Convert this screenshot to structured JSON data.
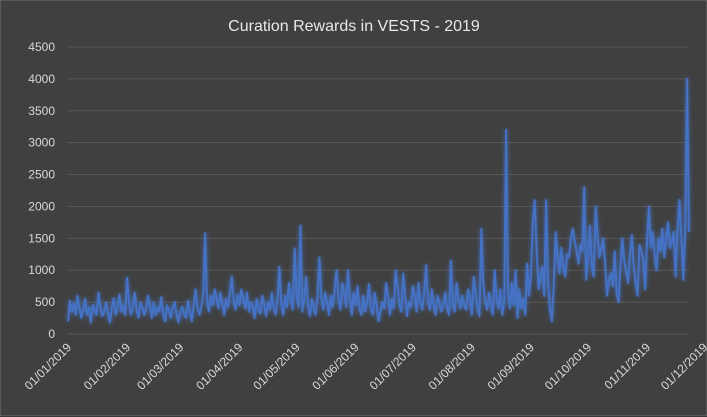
{
  "chart_data": {
    "type": "line",
    "title": "Curation Rewards in VESTS - 2019",
    "xlabel": "",
    "ylabel": "",
    "ylim": [
      0,
      4500
    ],
    "yticks": [
      0,
      500,
      1000,
      1500,
      2000,
      2500,
      3000,
      3500,
      4000,
      4500
    ],
    "xticks": [
      "01/01/2019",
      "01/02/2019",
      "01/03/2019",
      "01/04/2019",
      "01/05/2019",
      "01/06/2019",
      "01/07/2019",
      "01/08/2019",
      "01/09/2019",
      "01/10/2019",
      "01/11/2019",
      "01/12/2019"
    ],
    "grid": true,
    "legend": "none",
    "line_color": "#4472C4",
    "series": [
      {
        "x_start": "2019-01-01",
        "x_step_days": 1,
        "values": [
          200,
          520,
          350,
          480,
          300,
          600,
          420,
          250,
          380,
          550,
          300,
          420,
          180,
          460,
          380,
          300,
          650,
          420,
          280,
          350,
          500,
          320,
          180,
          420,
          560,
          300,
          400,
          620,
          350,
          450,
          300,
          880,
          520,
          300,
          420,
          650,
          380,
          250,
          500,
          420,
          300,
          380,
          600,
          450,
          250,
          500,
          300,
          420,
          350,
          580,
          300,
          200,
          450,
          380,
          250,
          420,
          500,
          300,
          180,
          350,
          430,
          300,
          250,
          520,
          350,
          200,
          450,
          700,
          400,
          300,
          420,
          650,
          1580,
          500,
          350,
          600,
          450,
          700,
          550,
          400,
          650,
          480,
          300,
          550,
          420,
          650,
          900,
          500,
          380,
          620,
          450,
          700,
          550,
          400,
          650,
          350,
          500,
          420,
          250,
          550,
          400,
          320,
          600,
          450,
          280,
          500,
          380,
          650,
          420,
          300,
          550,
          1050,
          450,
          300,
          600,
          420,
          800,
          550,
          380,
          1340,
          600,
          420,
          1700,
          350,
          550,
          900,
          450,
          280,
          550,
          420,
          300,
          600,
          1200,
          550,
          380,
          650,
          500,
          300,
          600,
          420,
          700,
          1000,
          550,
          380,
          800,
          650,
          420,
          1000,
          550,
          300,
          650,
          450,
          750,
          400,
          300,
          600,
          350,
          500,
          780,
          400,
          300,
          650,
          450,
          200,
          350,
          500,
          400,
          800,
          600,
          300,
          550,
          400,
          1000,
          750,
          450,
          350,
          950,
          600,
          280,
          500,
          420,
          750,
          600,
          350,
          800,
          500,
          380,
          650,
          1080,
          500,
          380,
          700,
          450,
          300,
          600,
          500,
          350,
          450,
          650,
          400,
          300,
          1150,
          450,
          350,
          800,
          550,
          400,
          600,
          450,
          380,
          700,
          550,
          300,
          900,
          650,
          400,
          280,
          1650,
          800,
          500,
          380,
          650,
          450,
          300,
          1000,
          550,
          400,
          700,
          300,
          500,
          3200,
          650,
          400,
          800,
          450,
          1000,
          250,
          700,
          400,
          550,
          300,
          1100,
          600,
          900,
          1750,
          2100,
          1350,
          700,
          900,
          1050,
          600,
          2100,
          850,
          400,
          200,
          750,
          1600,
          1200,
          950,
          1350,
          1050,
          900,
          1250,
          1200,
          1500,
          1650,
          1450,
          1300,
          1100,
          1400,
          1300,
          2300,
          850,
          1200,
          1700,
          1050,
          900,
          2000,
          1550,
          1200,
          1350,
          1500,
          1100,
          600,
          850,
          950,
          750,
          1300,
          650,
          500,
          1050,
          1500,
          1150,
          980,
          800,
          1250,
          1550,
          1050,
          800,
          600,
          1400,
          1300,
          1150,
          700,
          1500,
          2000,
          1350,
          1600,
          1200,
          1000,
          1500,
          1300,
          1650,
          1200,
          1500,
          1750,
          1350,
          1450,
          1600,
          900,
          1650,
          2100,
          1500,
          850,
          1600,
          4000,
          1600
        ]
      }
    ]
  }
}
